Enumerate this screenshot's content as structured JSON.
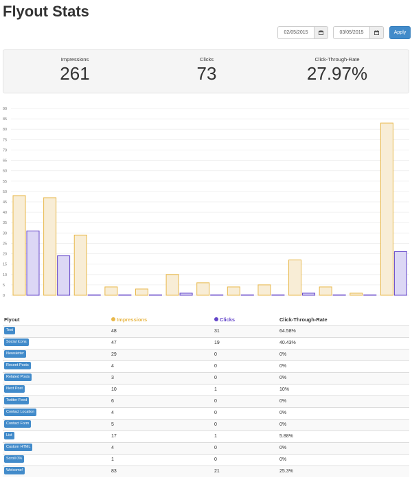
{
  "page": {
    "title": "Flyout Stats"
  },
  "date_range": {
    "start": "02/05/2015",
    "end": "03/05/2015",
    "apply_label": "Apply"
  },
  "summary": {
    "impressions": {
      "label": "Impressions",
      "value": "261"
    },
    "clicks": {
      "label": "Clicks",
      "value": "73"
    },
    "ctr": {
      "label": "Click-Through-Rate",
      "value": "27.97%"
    }
  },
  "colors": {
    "impressions_fill": "#f8edd6",
    "impressions_stroke": "#e8b84b",
    "clicks_fill": "#dcd7f5",
    "clicks_stroke": "#6446c9",
    "accent": "#428bca"
  },
  "chart_data": {
    "type": "bar",
    "categories": [
      "Text",
      "Social Icons",
      "Newsletter",
      "Recent Posts",
      "Related Posts",
      "Next Post",
      "Twitter Feed",
      "Contact Location",
      "Contact Form",
      "List",
      "Custom HTML",
      "Scroll 0%",
      "Welcome!"
    ],
    "series": [
      {
        "name": "Impressions",
        "values": [
          48,
          47,
          29,
          4,
          3,
          10,
          6,
          4,
          5,
          17,
          4,
          1,
          83
        ]
      },
      {
        "name": "Clicks",
        "values": [
          31,
          19,
          0,
          0,
          0,
          1,
          0,
          0,
          0,
          1,
          0,
          0,
          21
        ]
      }
    ],
    "ylim": [
      0,
      90
    ],
    "yticks": [
      0,
      5,
      10,
      15,
      20,
      25,
      30,
      35,
      40,
      45,
      50,
      55,
      60,
      65,
      70,
      75,
      80,
      85,
      90
    ],
    "grid": true
  },
  "table": {
    "headers": {
      "flyout": "Flyout",
      "impressions": "Impressions",
      "clicks": "Clicks",
      "ctr": "Click-Through-Rate"
    },
    "rows": [
      {
        "flyout": "Text",
        "impressions": "48",
        "clicks": "31",
        "ctr": "64.58%"
      },
      {
        "flyout": "Social Icons",
        "impressions": "47",
        "clicks": "19",
        "ctr": "40.43%"
      },
      {
        "flyout": "Newsletter",
        "impressions": "29",
        "clicks": "0",
        "ctr": "0%"
      },
      {
        "flyout": "Recent Posts",
        "impressions": "4",
        "clicks": "0",
        "ctr": "0%"
      },
      {
        "flyout": "Related Posts",
        "impressions": "3",
        "clicks": "0",
        "ctr": "0%"
      },
      {
        "flyout": "Next Post",
        "impressions": "10",
        "clicks": "1",
        "ctr": "10%"
      },
      {
        "flyout": "Twitter Feed",
        "impressions": "6",
        "clicks": "0",
        "ctr": "0%"
      },
      {
        "flyout": "Contact Location",
        "impressions": "4",
        "clicks": "0",
        "ctr": "0%"
      },
      {
        "flyout": "Contact Form",
        "impressions": "5",
        "clicks": "0",
        "ctr": "0%"
      },
      {
        "flyout": "List",
        "impressions": "17",
        "clicks": "1",
        "ctr": "5.88%"
      },
      {
        "flyout": "Custom HTML",
        "impressions": "4",
        "clicks": "0",
        "ctr": "0%"
      },
      {
        "flyout": "Scroll 0%",
        "impressions": "1",
        "clicks": "0",
        "ctr": "0%"
      },
      {
        "flyout": "Welcome!",
        "impressions": "83",
        "clicks": "21",
        "ctr": "25.3%"
      }
    ]
  },
  "icons": {
    "calendar": "calendar-icon",
    "impressions": "eye-icon",
    "clicks": "dot-icon"
  }
}
